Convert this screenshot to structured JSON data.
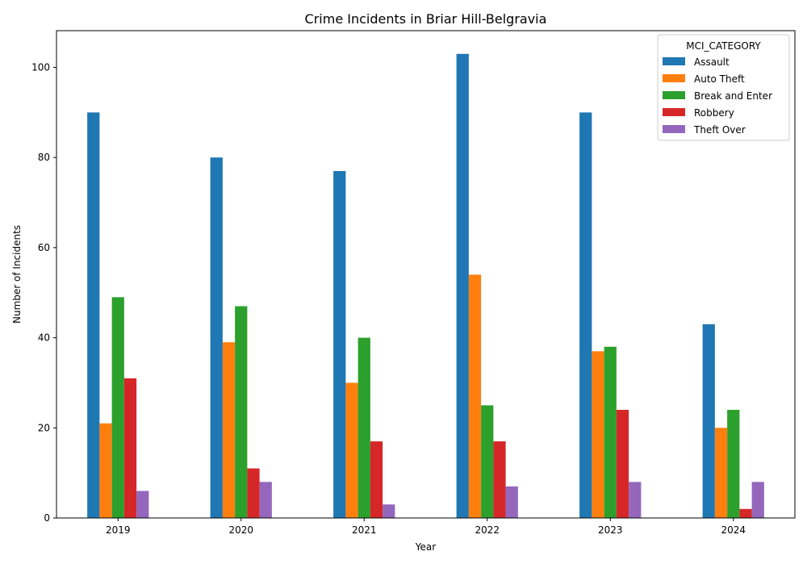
{
  "chart_data": {
    "type": "bar",
    "title": "Crime Incidents in Briar Hill-Belgravia",
    "xlabel": "Year",
    "ylabel": "Number of Incidents",
    "categories": [
      "2019",
      "2020",
      "2021",
      "2022",
      "2023",
      "2024"
    ],
    "ylim": [
      0,
      108.15
    ],
    "yticks": [
      0,
      20,
      40,
      60,
      80,
      100
    ],
    "legend": {
      "title": "MCI_CATEGORY",
      "placement": "top-right"
    },
    "grid": false,
    "series": [
      {
        "name": "Assault",
        "color": "#1f77b4",
        "values": [
          90,
          80,
          77,
          103,
          90,
          43
        ]
      },
      {
        "name": "Auto Theft",
        "color": "#ff7f0e",
        "values": [
          21,
          39,
          30,
          54,
          37,
          20
        ]
      },
      {
        "name": "Break and Enter",
        "color": "#2ca02c",
        "values": [
          49,
          47,
          40,
          25,
          38,
          24
        ]
      },
      {
        "name": "Robbery",
        "color": "#d62728",
        "values": [
          31,
          11,
          17,
          17,
          24,
          2
        ]
      },
      {
        "name": "Theft Over",
        "color": "#9467bd",
        "values": [
          6,
          8,
          3,
          7,
          8,
          8
        ]
      }
    ]
  }
}
